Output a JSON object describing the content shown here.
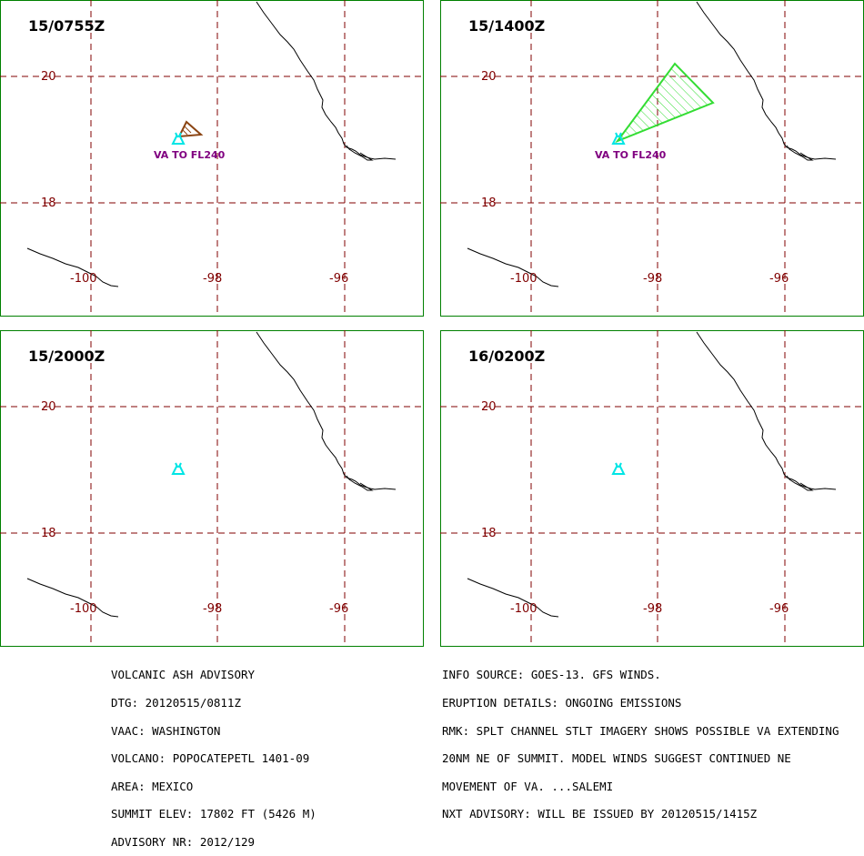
{
  "colors": {
    "frame": "#008000",
    "grid": "#800000",
    "grid_label": "#800000",
    "coastline": "#000000",
    "volcano": "#00e5e5",
    "label_text": "#800080",
    "ash_observed": "#8b4513",
    "ash_forecast": "#33dd33"
  },
  "panels": [
    {
      "time": "15/0755Z",
      "lat_labels": [
        "20",
        "18"
      ],
      "lon_labels": [
        "-100",
        "-98",
        "-96"
      ],
      "ash": "observed",
      "ash_label": "VA TO FL240"
    },
    {
      "time": "15/1400Z",
      "lat_labels": [
        "20",
        "18"
      ],
      "lon_labels": [
        "-100",
        "-98",
        "-96"
      ],
      "ash": "forecast",
      "ash_label": "VA TO FL240"
    },
    {
      "time": "15/2000Z",
      "lat_labels": [
        "20",
        "18"
      ],
      "lon_labels": [
        "-100",
        "-98",
        "-96"
      ],
      "ash": "none",
      "ash_label": ""
    },
    {
      "time": "16/0200Z",
      "lat_labels": [
        "20",
        "18"
      ],
      "lon_labels": [
        "-100",
        "-98",
        "-96"
      ],
      "ash": "none",
      "ash_label": ""
    }
  ],
  "advisory_left": [
    "VOLCANIC ASH ADVISORY",
    "DTG: 20120515/0811Z",
    "VAAC: WASHINGTON",
    "VOLCANO: POPOCATEPETL 1401-09",
    "AREA: MEXICO",
    "SUMMIT ELEV: 17802 FT (5426 M)",
    "ADVISORY NR: 2012/129"
  ],
  "advisory_right": [
    "INFO SOURCE: GOES-13. GFS WINDS.",
    "ERUPTION DETAILS: ONGOING EMISSIONS",
    "RMK: SPLT CHANNEL STLT IMAGERY SHOWS POSSIBLE VA EXTENDING",
    "20NM NE OF SUMMIT. MODEL WINDS SUGGEST CONTINUED NE",
    "MOVEMENT OF VA. ...SALEMI",
    "NXT ADVISORY: WILL BE ISSUED BY 20120515/1415Z"
  ]
}
